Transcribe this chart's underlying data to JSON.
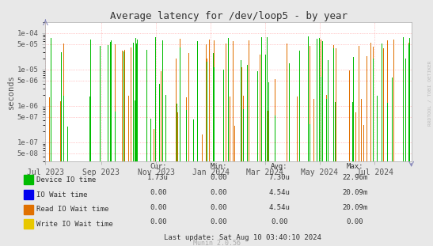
{
  "title": "Average latency for /dev/loop5 - by year",
  "ylabel": "seconds",
  "background_color": "#e8e8e8",
  "plot_bg_color": "#ffffff",
  "grid_color": "#ff9999",
  "xmin": 1688169600,
  "xmax": 1723334400,
  "ymin": 3e-08,
  "ymax": 0.0002,
  "colors": {
    "green": "#00bb00",
    "orange": "#e07000",
    "blue": "#0000ee",
    "yellow": "#e8c800"
  },
  "legend_entries": [
    {
      "label": "Device IO time",
      "color": "#00bb00",
      "cur": "1.73u",
      "min": "0.00",
      "avg": "7.30u",
      "max": "22.96m"
    },
    {
      "label": "IO Wait time",
      "color": "#0000ee",
      "cur": "0.00",
      "min": "0.00",
      "avg": "4.54u",
      "max": "20.09m"
    },
    {
      "label": "Read IO Wait time",
      "color": "#e07000",
      "cur": "0.00",
      "min": "0.00",
      "avg": "4.54u",
      "max": "20.09m"
    },
    {
      "label": "Write IO Wait time",
      "color": "#e8c800",
      "cur": "0.00",
      "min": "0.00",
      "avg": "0.00",
      "max": "0.00"
    }
  ],
  "last_update": "Last update: Sat Aug 10 03:40:10 2024",
  "munin_version": "Munin 2.0.56",
  "right_label": "RRDTOOL / TOBI OETIKER",
  "ytick_vals": [
    5e-08,
    1e-07,
    5e-07,
    1e-06,
    5e-06,
    1e-05,
    5e-05,
    0.0001
  ],
  "ytick_labels": [
    "5e-08",
    "1e-07",
    "5e-07",
    "1e-06",
    "5e-06",
    "1e-05",
    "5e-05",
    "1e-04"
  ],
  "xtick_labels": [
    "Jul 2023",
    "Sep 2023",
    "Nov 2023",
    "Jan 2024",
    "Mar 2024",
    "May 2024",
    "Jul 2024"
  ],
  "xtick_positions": [
    1688169600,
    1693526400,
    1698796800,
    1704067200,
    1709251200,
    1714521600,
    1719792000
  ]
}
